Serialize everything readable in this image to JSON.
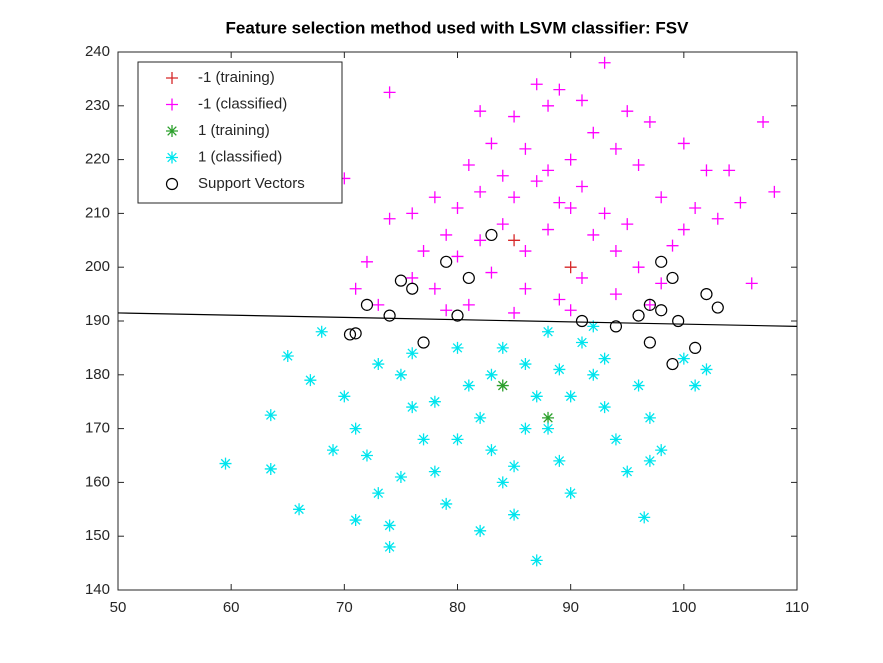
{
  "chart_data": {
    "type": "scatter",
    "title": "Feature selection method used with LSVM classifier: FSV",
    "xlim": [
      50,
      110
    ],
    "ylim": [
      140,
      240
    ],
    "xticks": [
      50,
      60,
      70,
      80,
      90,
      100,
      110
    ],
    "yticks": [
      140,
      150,
      160,
      170,
      180,
      190,
      200,
      210,
      220,
      230,
      240
    ],
    "grid": false,
    "legend": "upper left",
    "line": {
      "x": [
        50,
        110
      ],
      "y": [
        191.5,
        189
      ],
      "color": "#000000"
    },
    "series": [
      {
        "name": "-1 (training)",
        "color": "#d62728",
        "marker": "+",
        "x": [
          85,
          90
        ],
        "y": [
          205,
          200
        ]
      },
      {
        "name": "-1 (classified)",
        "color": "#ff00ff",
        "marker": "+",
        "x": [
          74,
          93,
          87,
          89,
          82,
          85,
          88,
          91,
          95,
          97,
          100,
          102,
          107,
          108,
          105,
          103,
          100,
          98,
          96,
          94,
          92,
          90,
          88,
          86,
          84,
          82,
          80,
          78,
          76,
          74,
          72,
          70,
          71,
          73,
          76,
          78,
          80,
          82,
          84,
          86,
          88,
          90,
          92,
          94,
          96,
          98,
          97,
          94,
          91,
          89,
          86,
          83,
          81,
          79,
          85,
          87,
          89,
          91,
          93,
          95,
          83,
          81,
          79,
          77,
          99,
          101,
          104,
          106,
          85,
          90
        ],
        "y": [
          232.5,
          238,
          234,
          233,
          229,
          228,
          230,
          231,
          229,
          227,
          223,
          218,
          227,
          214,
          212,
          209,
          207,
          213,
          219,
          222,
          225,
          220,
          218,
          222,
          217,
          214,
          211,
          213,
          210,
          209,
          201,
          216.5,
          196,
          193,
          198,
          196,
          202,
          205,
          208,
          203,
          207,
          211,
          206,
          203,
          200,
          197,
          193,
          195,
          198,
          194,
          196,
          199,
          193,
          192,
          213,
          216,
          212,
          215,
          210,
          208,
          223,
          219,
          206,
          203,
          204,
          211,
          218,
          197,
          191.5,
          192
        ]
      },
      {
        "name": "1 (training)",
        "color": "#2ca02c",
        "marker": "*",
        "x": [
          84,
          88
        ],
        "y": [
          178,
          172
        ]
      },
      {
        "name": "1 (classified)",
        "color": "#00e5ee",
        "marker": "*",
        "x": [
          59.5,
          63.5,
          63.5,
          65,
          66,
          67,
          68,
          70,
          71,
          72,
          73,
          74,
          74,
          75,
          76,
          77,
          78,
          79,
          80,
          81,
          82,
          83,
          84,
          85,
          86,
          87,
          88,
          89,
          90,
          91,
          92,
          93,
          94,
          95,
          96,
          97,
          98,
          100,
          101,
          102,
          87,
          96.5,
          82,
          78,
          84,
          88,
          92,
          76,
          73,
          69,
          71,
          80,
          86,
          90,
          83,
          85,
          89,
          93,
          97,
          75
        ],
        "y": [
          163.5,
          172.5,
          162.5,
          183.5,
          155,
          179,
          188,
          176,
          170,
          165,
          158,
          152,
          148,
          180,
          174,
          168,
          162,
          156,
          185,
          178,
          172,
          166,
          160,
          154,
          182,
          176,
          170,
          164,
          158,
          186,
          180,
          174,
          168,
          162,
          178,
          172,
          166,
          183,
          178,
          181,
          145.5,
          153.5,
          151,
          175,
          185,
          188,
          189,
          184,
          182,
          166,
          153,
          168,
          170,
          176,
          180,
          163,
          181,
          183,
          164,
          161
        ]
      },
      {
        "name": "Support Vectors",
        "color": "#000000",
        "marker": "o",
        "x": [
          70.5,
          71,
          72,
          74,
          75,
          76,
          77,
          79,
          80,
          81,
          83,
          97,
          98,
          99,
          99.5,
          101,
          102,
          103,
          99,
          97,
          96,
          98,
          94,
          91
        ],
        "y": [
          187.5,
          187.7,
          193,
          191,
          197.5,
          196,
          186,
          201,
          191,
          198,
          206,
          193,
          192,
          198,
          190,
          185,
          195,
          192.5,
          182,
          186,
          191,
          201,
          189,
          190
        ]
      }
    ]
  }
}
